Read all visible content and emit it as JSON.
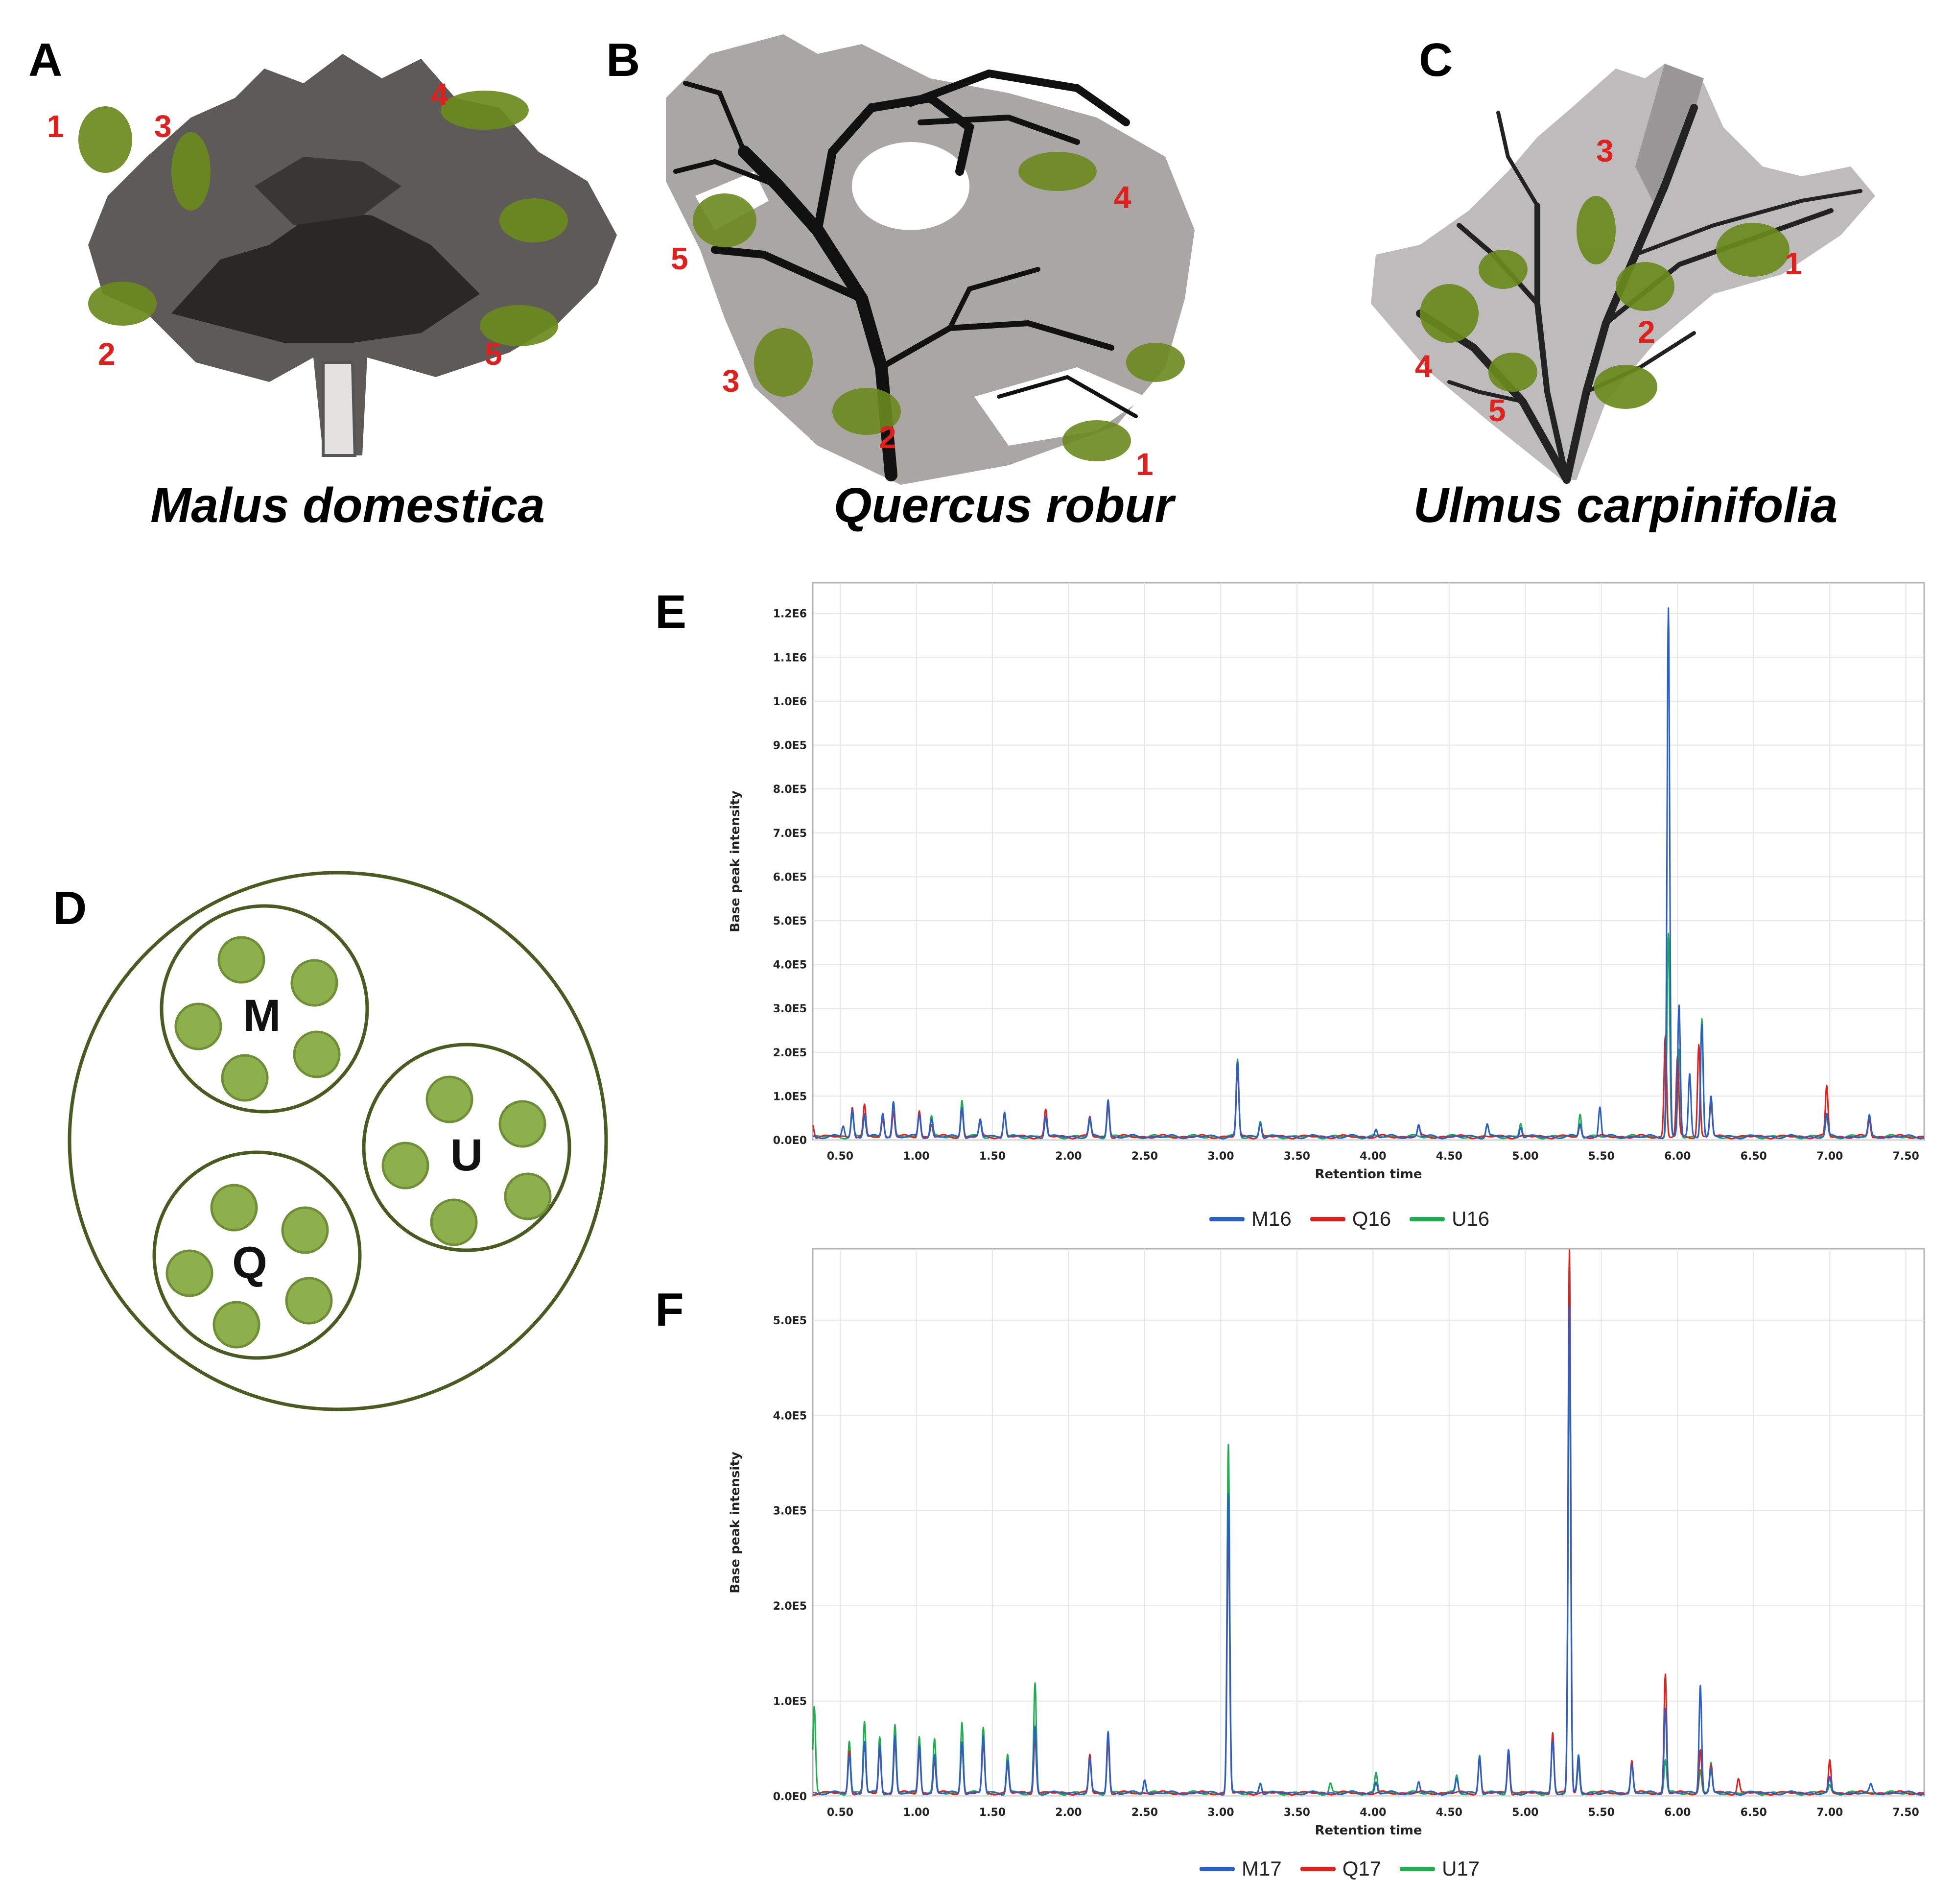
{
  "panels": {
    "A": {
      "letter": "A",
      "species": "Malus domestica",
      "labels": [
        "1",
        "2",
        "3",
        "4",
        "5"
      ]
    },
    "B": {
      "letter": "B",
      "species": "Quercus robur",
      "labels": [
        "1",
        "2",
        "3",
        "4",
        "5"
      ]
    },
    "C": {
      "letter": "C",
      "species": "Ulmus carpinifolia",
      "labels": [
        "1",
        "2",
        "3",
        "4",
        "5"
      ]
    },
    "D": {
      "letter": "D",
      "groups": [
        "M",
        "U",
        "Q"
      ]
    },
    "E": {
      "letter": "E"
    },
    "F": {
      "letter": "F"
    }
  },
  "colors": {
    "series_blue": "#2a5fc8",
    "series_red": "#e0201c",
    "series_green": "#1fae4f",
    "moss_green": "#6b8a1e",
    "dot_fill": "#8db04c",
    "dot_stroke": "#6f8f36",
    "circle_stroke": "#4a5b22",
    "number_red": "#e0201c"
  },
  "chart_data": [
    {
      "type": "line",
      "panel": "E",
      "xlabel": "Retention time",
      "ylabel": "Base peak intensity",
      "xlim": [
        0.32,
        7.62
      ],
      "ylim": [
        0,
        1270000
      ],
      "x_ticks": [
        0.5,
        1.0,
        1.5,
        2.0,
        2.5,
        3.0,
        3.5,
        4.0,
        4.5,
        5.0,
        5.5,
        6.0,
        6.5,
        7.0,
        7.5
      ],
      "x_tick_labels": [
        "0.50",
        "1.00",
        "1.50",
        "2.00",
        "2.50",
        "3.00",
        "3.50",
        "4.00",
        "4.50",
        "5.00",
        "5.50",
        "6.00",
        "6.50",
        "7.00",
        "7.50"
      ],
      "y_ticks": [
        0,
        100000,
        200000,
        300000,
        400000,
        500000,
        600000,
        700000,
        800000,
        900000,
        1000000,
        1100000,
        1200000
      ],
      "y_tick_labels": [
        "0.0E0",
        "1.0E5",
        "2.0E5",
        "3.0E5",
        "4.0E5",
        "5.0E5",
        "6.0E5",
        "7.0E5",
        "8.0E5",
        "9.0E5",
        "1.0E6",
        "1.1E6",
        "1.2E6"
      ],
      "grid": true,
      "legend_position": "bottom-center",
      "series": [
        {
          "name": "M16",
          "color": "#2a5fc8",
          "peaks": [
            [
              0.52,
              25000
            ],
            [
              0.58,
              60000
            ],
            [
              0.66,
              55000
            ],
            [
              0.78,
              55000
            ],
            [
              0.85,
              80000
            ],
            [
              1.02,
              50000
            ],
            [
              1.1,
              40000
            ],
            [
              1.3,
              70000
            ],
            [
              1.42,
              40000
            ],
            [
              1.58,
              60000
            ],
            [
              1.85,
              50000
            ],
            [
              2.14,
              40000
            ],
            [
              2.26,
              85000
            ],
            [
              3.11,
              170000
            ],
            [
              3.26,
              35000
            ],
            [
              4.02,
              18000
            ],
            [
              4.3,
              28000
            ],
            [
              4.75,
              30000
            ],
            [
              4.97,
              25000
            ],
            [
              5.36,
              30000
            ],
            [
              5.49,
              70000
            ],
            [
              5.94,
              1205000
            ],
            [
              6.01,
              300000
            ],
            [
              6.08,
              140000
            ],
            [
              6.16,
              260000
            ],
            [
              6.22,
              90000
            ],
            [
              6.98,
              50000
            ],
            [
              7.26,
              45000
            ]
          ]
        },
        {
          "name": "Q16",
          "color": "#e0201c",
          "peaks": [
            [
              0.32,
              30000
            ],
            [
              0.58,
              70000
            ],
            [
              0.66,
              70000
            ],
            [
              0.78,
              40000
            ],
            [
              0.85,
              60000
            ],
            [
              1.02,
              60000
            ],
            [
              1.1,
              30000
            ],
            [
              1.3,
              60000
            ],
            [
              1.42,
              35000
            ],
            [
              1.58,
              50000
            ],
            [
              1.85,
              60000
            ],
            [
              2.14,
              45000
            ],
            [
              2.26,
              75000
            ],
            [
              3.11,
              150000
            ],
            [
              3.26,
              30000
            ],
            [
              4.3,
              20000
            ],
            [
              5.36,
              25000
            ],
            [
              5.92,
              230000
            ],
            [
              6.0,
              180000
            ],
            [
              6.14,
              210000
            ],
            [
              6.22,
              80000
            ],
            [
              6.98,
              115000
            ],
            [
              7.26,
              40000
            ]
          ]
        },
        {
          "name": "U16",
          "color": "#1fae4f",
          "peaks": [
            [
              0.58,
              50000
            ],
            [
              0.66,
              45000
            ],
            [
              0.78,
              55000
            ],
            [
              0.85,
              70000
            ],
            [
              1.02,
              55000
            ],
            [
              1.1,
              45000
            ],
            [
              1.3,
              85000
            ],
            [
              1.42,
              35000
            ],
            [
              1.58,
              55000
            ],
            [
              1.85,
              40000
            ],
            [
              2.14,
              35000
            ],
            [
              2.26,
              70000
            ],
            [
              3.11,
              175000
            ],
            [
              3.26,
              35000
            ],
            [
              4.75,
              25000
            ],
            [
              4.97,
              30000
            ],
            [
              5.36,
              55000
            ],
            [
              5.94,
              460000
            ],
            [
              6.01,
              200000
            ],
            [
              6.16,
              270000
            ],
            [
              6.22,
              70000
            ],
            [
              6.98,
              45000
            ],
            [
              7.26,
              50000
            ]
          ]
        }
      ]
    },
    {
      "type": "line",
      "panel": "F",
      "xlabel": "Retention time",
      "ylabel": "Base peak intensity",
      "xlim": [
        0.32,
        7.62
      ],
      "ylim": [
        0,
        575000
      ],
      "x_ticks": [
        0.5,
        1.0,
        1.5,
        2.0,
        2.5,
        3.0,
        3.5,
        4.0,
        4.5,
        5.0,
        5.5,
        6.0,
        6.5,
        7.0,
        7.5
      ],
      "x_tick_labels": [
        "0.50",
        "1.00",
        "1.50",
        "2.00",
        "2.50",
        "3.00",
        "3.50",
        "4.00",
        "4.50",
        "5.00",
        "5.50",
        "6.00",
        "6.50",
        "7.00",
        "7.50"
      ],
      "y_ticks": [
        0,
        100000,
        200000,
        300000,
        400000,
        500000
      ],
      "y_tick_labels": [
        "0.0E0",
        "1.0E5",
        "2.0E5",
        "3.0E5",
        "4.0E5",
        "5.0E5"
      ],
      "grid": true,
      "legend_position": "bottom-center",
      "series": [
        {
          "name": "M17",
          "color": "#2a5fc8",
          "peaks": [
            [
              0.56,
              40000
            ],
            [
              0.66,
              55000
            ],
            [
              0.76,
              50000
            ],
            [
              0.86,
              60000
            ],
            [
              1.02,
              50000
            ],
            [
              1.12,
              40000
            ],
            [
              1.3,
              55000
            ],
            [
              1.44,
              60000
            ],
            [
              1.6,
              35000
            ],
            [
              1.78,
              70000
            ],
            [
              2.14,
              35000
            ],
            [
              2.26,
              65000
            ],
            [
              2.5,
              15000
            ],
            [
              3.05,
              315000
            ],
            [
              3.26,
              12000
            ],
            [
              4.02,
              12000
            ],
            [
              4.3,
              12000
            ],
            [
              4.55,
              15000
            ],
            [
              4.7,
              40000
            ],
            [
              4.89,
              45000
            ],
            [
              5.18,
              55000
            ],
            [
              5.29,
              510000
            ],
            [
              5.35,
              40000
            ],
            [
              5.7,
              30000
            ],
            [
              5.92,
              90000
            ],
            [
              6.15,
              115000
            ],
            [
              6.22,
              25000
            ],
            [
              7.0,
              15000
            ],
            [
              7.27,
              8000
            ]
          ]
        },
        {
          "name": "Q17",
          "color": "#e0201c",
          "peaks": [
            [
              0.56,
              45000
            ],
            [
              0.66,
              50000
            ],
            [
              0.76,
              45000
            ],
            [
              0.86,
              55000
            ],
            [
              1.02,
              45000
            ],
            [
              1.12,
              35000
            ],
            [
              1.3,
              50000
            ],
            [
              1.44,
              50000
            ],
            [
              1.6,
              30000
            ],
            [
              1.78,
              60000
            ],
            [
              2.14,
              40000
            ],
            [
              2.26,
              55000
            ],
            [
              3.05,
              280000
            ],
            [
              4.7,
              35000
            ],
            [
              4.89,
              40000
            ],
            [
              5.18,
              65000
            ],
            [
              5.29,
              570000
            ],
            [
              5.35,
              35000
            ],
            [
              5.7,
              35000
            ],
            [
              5.92,
              125000
            ],
            [
              6.15,
              45000
            ],
            [
              6.22,
              30000
            ],
            [
              6.4,
              15000
            ],
            [
              7.0,
              35000
            ]
          ]
        },
        {
          "name": "U17",
          "color": "#1fae4f",
          "peaks": [
            [
              0.33,
              90000
            ],
            [
              0.56,
              55000
            ],
            [
              0.66,
              75000
            ],
            [
              0.76,
              60000
            ],
            [
              0.86,
              70000
            ],
            [
              1.02,
              60000
            ],
            [
              1.12,
              55000
            ],
            [
              1.3,
              75000
            ],
            [
              1.44,
              70000
            ],
            [
              1.6,
              40000
            ],
            [
              1.78,
              115000
            ],
            [
              2.14,
              35000
            ],
            [
              2.26,
              55000
            ],
            [
              2.5,
              15000
            ],
            [
              3.05,
              365000
            ],
            [
              3.26,
              10000
            ],
            [
              3.72,
              10000
            ],
            [
              4.02,
              20000
            ],
            [
              4.55,
              18000
            ],
            [
              4.7,
              40000
            ],
            [
              4.89,
              40000
            ],
            [
              5.18,
              60000
            ],
            [
              5.29,
              460000
            ],
            [
              5.35,
              30000
            ],
            [
              5.7,
              30000
            ],
            [
              5.92,
              35000
            ],
            [
              6.15,
              25000
            ],
            [
              6.22,
              30000
            ],
            [
              7.0,
              8000
            ]
          ]
        }
      ]
    }
  ]
}
